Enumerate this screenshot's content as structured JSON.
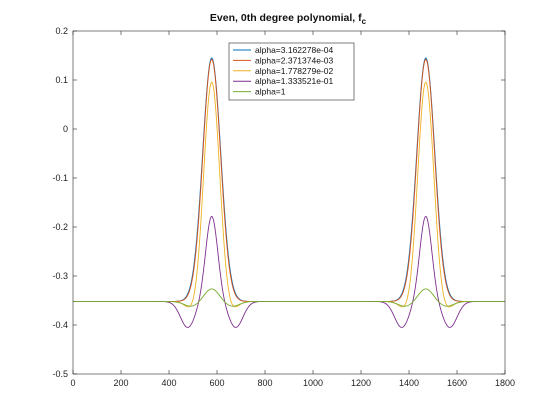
{
  "chart_data": {
    "type": "line",
    "title": "Even, 0th degree polynomial, f",
    "title_subscript": "c",
    "xlabel": "",
    "ylabel": "",
    "xlim": [
      0,
      1800
    ],
    "ylim": [
      -0.5,
      0.2
    ],
    "xticks": [
      0,
      200,
      400,
      600,
      800,
      1000,
      1200,
      1400,
      1600,
      1800
    ],
    "yticks": [
      -0.5,
      -0.4,
      -0.3,
      -0.2,
      -0.1,
      0,
      0.1,
      0.2
    ],
    "ytick_labels": [
      "-0.5",
      "-0.4",
      "-0.3",
      "-0.2",
      "-0.1",
      "0",
      "0.1",
      "0.2"
    ],
    "grid": false,
    "legend_position": "top-center",
    "baseline": -0.352,
    "peak_centers": [
      578,
      1470
    ],
    "series": [
      {
        "name": "alpha=3.162278e-04",
        "color": "#0072BD",
        "peak": 0.145,
        "width": 38,
        "dip": 0.0,
        "dip_offset": 100,
        "dip_width": 38
      },
      {
        "name": "alpha=2.371374e-03",
        "color": "#D95319",
        "peak": 0.142,
        "width": 37,
        "dip": 0.0,
        "dip_offset": 100,
        "dip_width": 38
      },
      {
        "name": "alpha=1.778279e-02",
        "color": "#EDB120",
        "peak": 0.097,
        "width": 33,
        "dip": -0.375,
        "dip_offset": 75,
        "dip_width": 28
      },
      {
        "name": "alpha=1.333521e-01",
        "color": "#7E2F8E",
        "peak": -0.178,
        "width": 25,
        "dip": -0.405,
        "dip_offset": 100,
        "dip_width": 30
      },
      {
        "name": "alpha=1",
        "color": "#77AC30",
        "peak": -0.326,
        "width": 30,
        "dip": -0.362,
        "dip_offset": 85,
        "dip_width": 30
      }
    ]
  }
}
